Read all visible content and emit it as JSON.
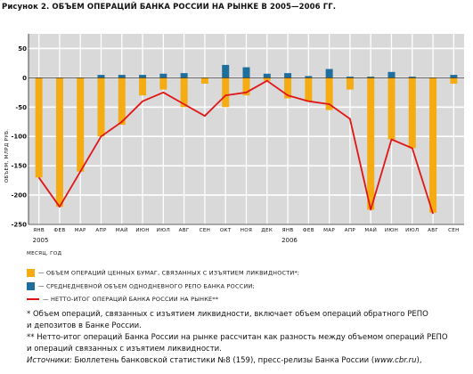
{
  "title": "Рисунок 2. ОБЪЕМ ОПЕРАЦИЙ БАНКА РОССИИ НА РЫНКЕ В 2005—2006 ГГ.",
  "colors": {
    "orange": "#f5ac13",
    "blue": "#1f6f9e",
    "red": "#e01515",
    "panel": "#d9d9d9",
    "grid": "#ffffff"
  },
  "chart_data": {
    "type": "bar",
    "ylabel": "ОБЪЕМ, МЛРД РУБ.",
    "xlabel": "МЕСЯЦ, ГОД",
    "ylim": [
      -250,
      75
    ],
    "yticks": [
      50,
      0,
      -50,
      -100,
      -150,
      -200,
      -250
    ],
    "grid": true,
    "categories": [
      "ЯНВ",
      "ФЕВ",
      "МАР",
      "АПР",
      "МАЙ",
      "ИЮН",
      "ИЮЛ",
      "АВГ",
      "СЕН",
      "ОКТ",
      "НОЯ",
      "ДЕК",
      "ЯНВ",
      "ФЕВ",
      "МАР",
      "АПР",
      "МАЙ",
      "ИЮН",
      "ИЮЛ",
      "АВГ",
      "СЕН"
    ],
    "year_labels": [
      {
        "index": 0,
        "label": "2005"
      },
      {
        "index": 12,
        "label": "2006"
      }
    ],
    "series": [
      {
        "name": "— ОБЪЕМ ОПЕРАЦИЙ ЦЕННЫХ БУМАГ, СВЯЗАННЫХ С ИЗЪЯТИЕМ ЛИКВИДНОСТИ*;",
        "type": "bar",
        "color": "#f5ac13",
        "values": [
          -170,
          -220,
          -160,
          -100,
          -80,
          -30,
          -20,
          -50,
          -10,
          -50,
          -30,
          -5,
          -35,
          -40,
          -55,
          -20,
          -225,
          -105,
          -120,
          -230,
          -10
        ]
      },
      {
        "name": "— СРЕДНЕДНЕВНОЙ ОБЪЕМ ОДНОДНЕВНОГО РЕПО БАНКА РОССИИ;",
        "type": "bar",
        "color": "#1f6f9e",
        "values": [
          0,
          0,
          0,
          5,
          5,
          5,
          7,
          8,
          0,
          22,
          18,
          7,
          8,
          3,
          15,
          2,
          2,
          10,
          2,
          0,
          5
        ]
      },
      {
        "name": "— НЕТТО-ИТОГ ОПЕРАЦИЙ БАНКА РОССИИ НА РЫНКЕ**",
        "type": "line",
        "color": "#e01515",
        "values": [
          -170,
          -220,
          -160,
          -100,
          -75,
          -40,
          -25,
          -45,
          -65,
          -30,
          -25,
          -5,
          -30,
          -40,
          -45,
          -70,
          -225,
          -105,
          -120,
          -232,
          null
        ]
      }
    ]
  },
  "notes": {
    "n1a": "* Объем операций, связанных с изъятием ликвидности, включает объем операций обратного РЕПО",
    "n1b": "и депозитов в Банке России.",
    "n2a": "** Нетто-итог операций Банка России на рынке рассчитан как разность между объемом операций РЕПО",
    "n2b": "и операций связанных с изъятием ликвидности.",
    "src_label": "Источники:",
    "src_text": " Бюллетень банковской статистики №8 (159), пресс-релизы Банка России (",
    "src_url": "www.cbr.ru",
    "src_end": "),"
  }
}
